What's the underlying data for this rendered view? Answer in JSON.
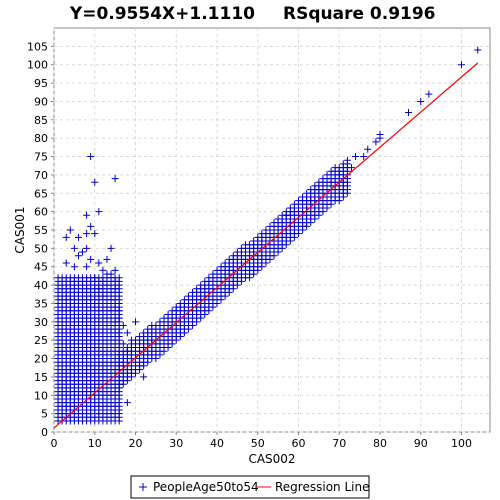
{
  "chart_data": {
    "type": "scatter",
    "title_equation": "Y=0.9554X+1.1110",
    "title_rsquare": "RSquare 0.9196",
    "xlabel": "CAS002",
    "ylabel": "CAS001",
    "xlim": [
      0,
      107
    ],
    "ylim": [
      0,
      110
    ],
    "xticks": [
      0,
      10,
      20,
      30,
      40,
      50,
      60,
      70,
      80,
      90,
      100
    ],
    "yticks": [
      0,
      5,
      10,
      15,
      20,
      25,
      30,
      35,
      40,
      45,
      50,
      55,
      60,
      65,
      70,
      75,
      80,
      85,
      90,
      95,
      100,
      105
    ],
    "grid": true,
    "legend_position": "bottom",
    "regression": {
      "slope": 0.9554,
      "intercept": 1.111,
      "x_range": [
        0,
        104
      ]
    },
    "series": [
      {
        "name": "PeopleAge50to54",
        "marker": "plus",
        "color": "#0000cc",
        "points": [
          [
            9,
            75
          ],
          [
            10,
            68
          ],
          [
            15,
            69
          ],
          [
            11,
            60
          ],
          [
            8,
            59
          ],
          [
            9,
            56
          ],
          [
            8,
            54
          ],
          [
            10,
            54
          ],
          [
            4,
            55
          ],
          [
            3,
            53
          ],
          [
            6,
            53
          ],
          [
            5,
            50
          ],
          [
            8,
            50
          ],
          [
            14,
            50
          ],
          [
            9,
            47
          ],
          [
            11,
            46
          ],
          [
            13,
            47
          ],
          [
            12,
            44
          ],
          [
            14,
            43
          ],
          [
            15,
            44
          ],
          [
            5,
            45
          ],
          [
            3,
            46
          ],
          [
            6,
            48
          ],
          [
            7,
            49
          ],
          [
            8,
            45
          ],
          [
            10,
            42
          ],
          [
            13,
            40
          ],
          [
            14,
            38
          ],
          [
            15,
            35
          ],
          [
            16,
            33
          ],
          [
            17,
            29
          ],
          [
            18,
            27
          ],
          [
            19,
            25
          ],
          [
            15,
            30
          ],
          [
            14,
            33
          ],
          [
            12,
            37
          ],
          [
            11,
            39
          ],
          [
            16,
            27
          ],
          [
            20,
            30
          ],
          [
            18,
            8
          ],
          [
            22,
            15
          ],
          [
            21,
            18
          ],
          [
            19,
            20
          ],
          [
            12,
            41
          ],
          [
            13,
            43
          ],
          [
            15,
            41
          ],
          [
            15,
            39
          ],
          [
            14,
            36
          ],
          [
            16,
            31
          ],
          [
            17,
            24
          ],
          [
            18,
            22
          ],
          [
            57,
            59
          ],
          [
            59,
            60
          ],
          [
            61,
            56
          ],
          [
            63,
            63
          ],
          [
            65,
            66
          ],
          [
            67,
            66
          ],
          [
            68,
            68
          ],
          [
            70,
            70
          ],
          [
            71,
            68
          ],
          [
            73,
            72
          ],
          [
            74,
            75
          ],
          [
            76,
            75
          ],
          [
            77,
            77
          ],
          [
            79,
            79
          ],
          [
            80,
            80
          ],
          [
            80,
            81
          ],
          [
            87,
            87
          ],
          [
            90,
            90
          ],
          [
            92,
            92
          ],
          [
            100,
            100
          ],
          [
            104,
            104
          ]
        ],
        "dense_regions": [
          {
            "x": [
              1,
              16
            ],
            "y": [
              3,
              42
            ],
            "x_step": 1,
            "y_step": 1
          },
          {
            "x": [
              16,
              72
            ],
            "band_slope": 0.9554,
            "band_intercept": 1.111,
            "band_half_width": 5.0,
            "x_step": 1,
            "y_step": 1
          }
        ]
      },
      {
        "name": "Regression Line",
        "color": "#ff0000",
        "line": true
      }
    ]
  }
}
